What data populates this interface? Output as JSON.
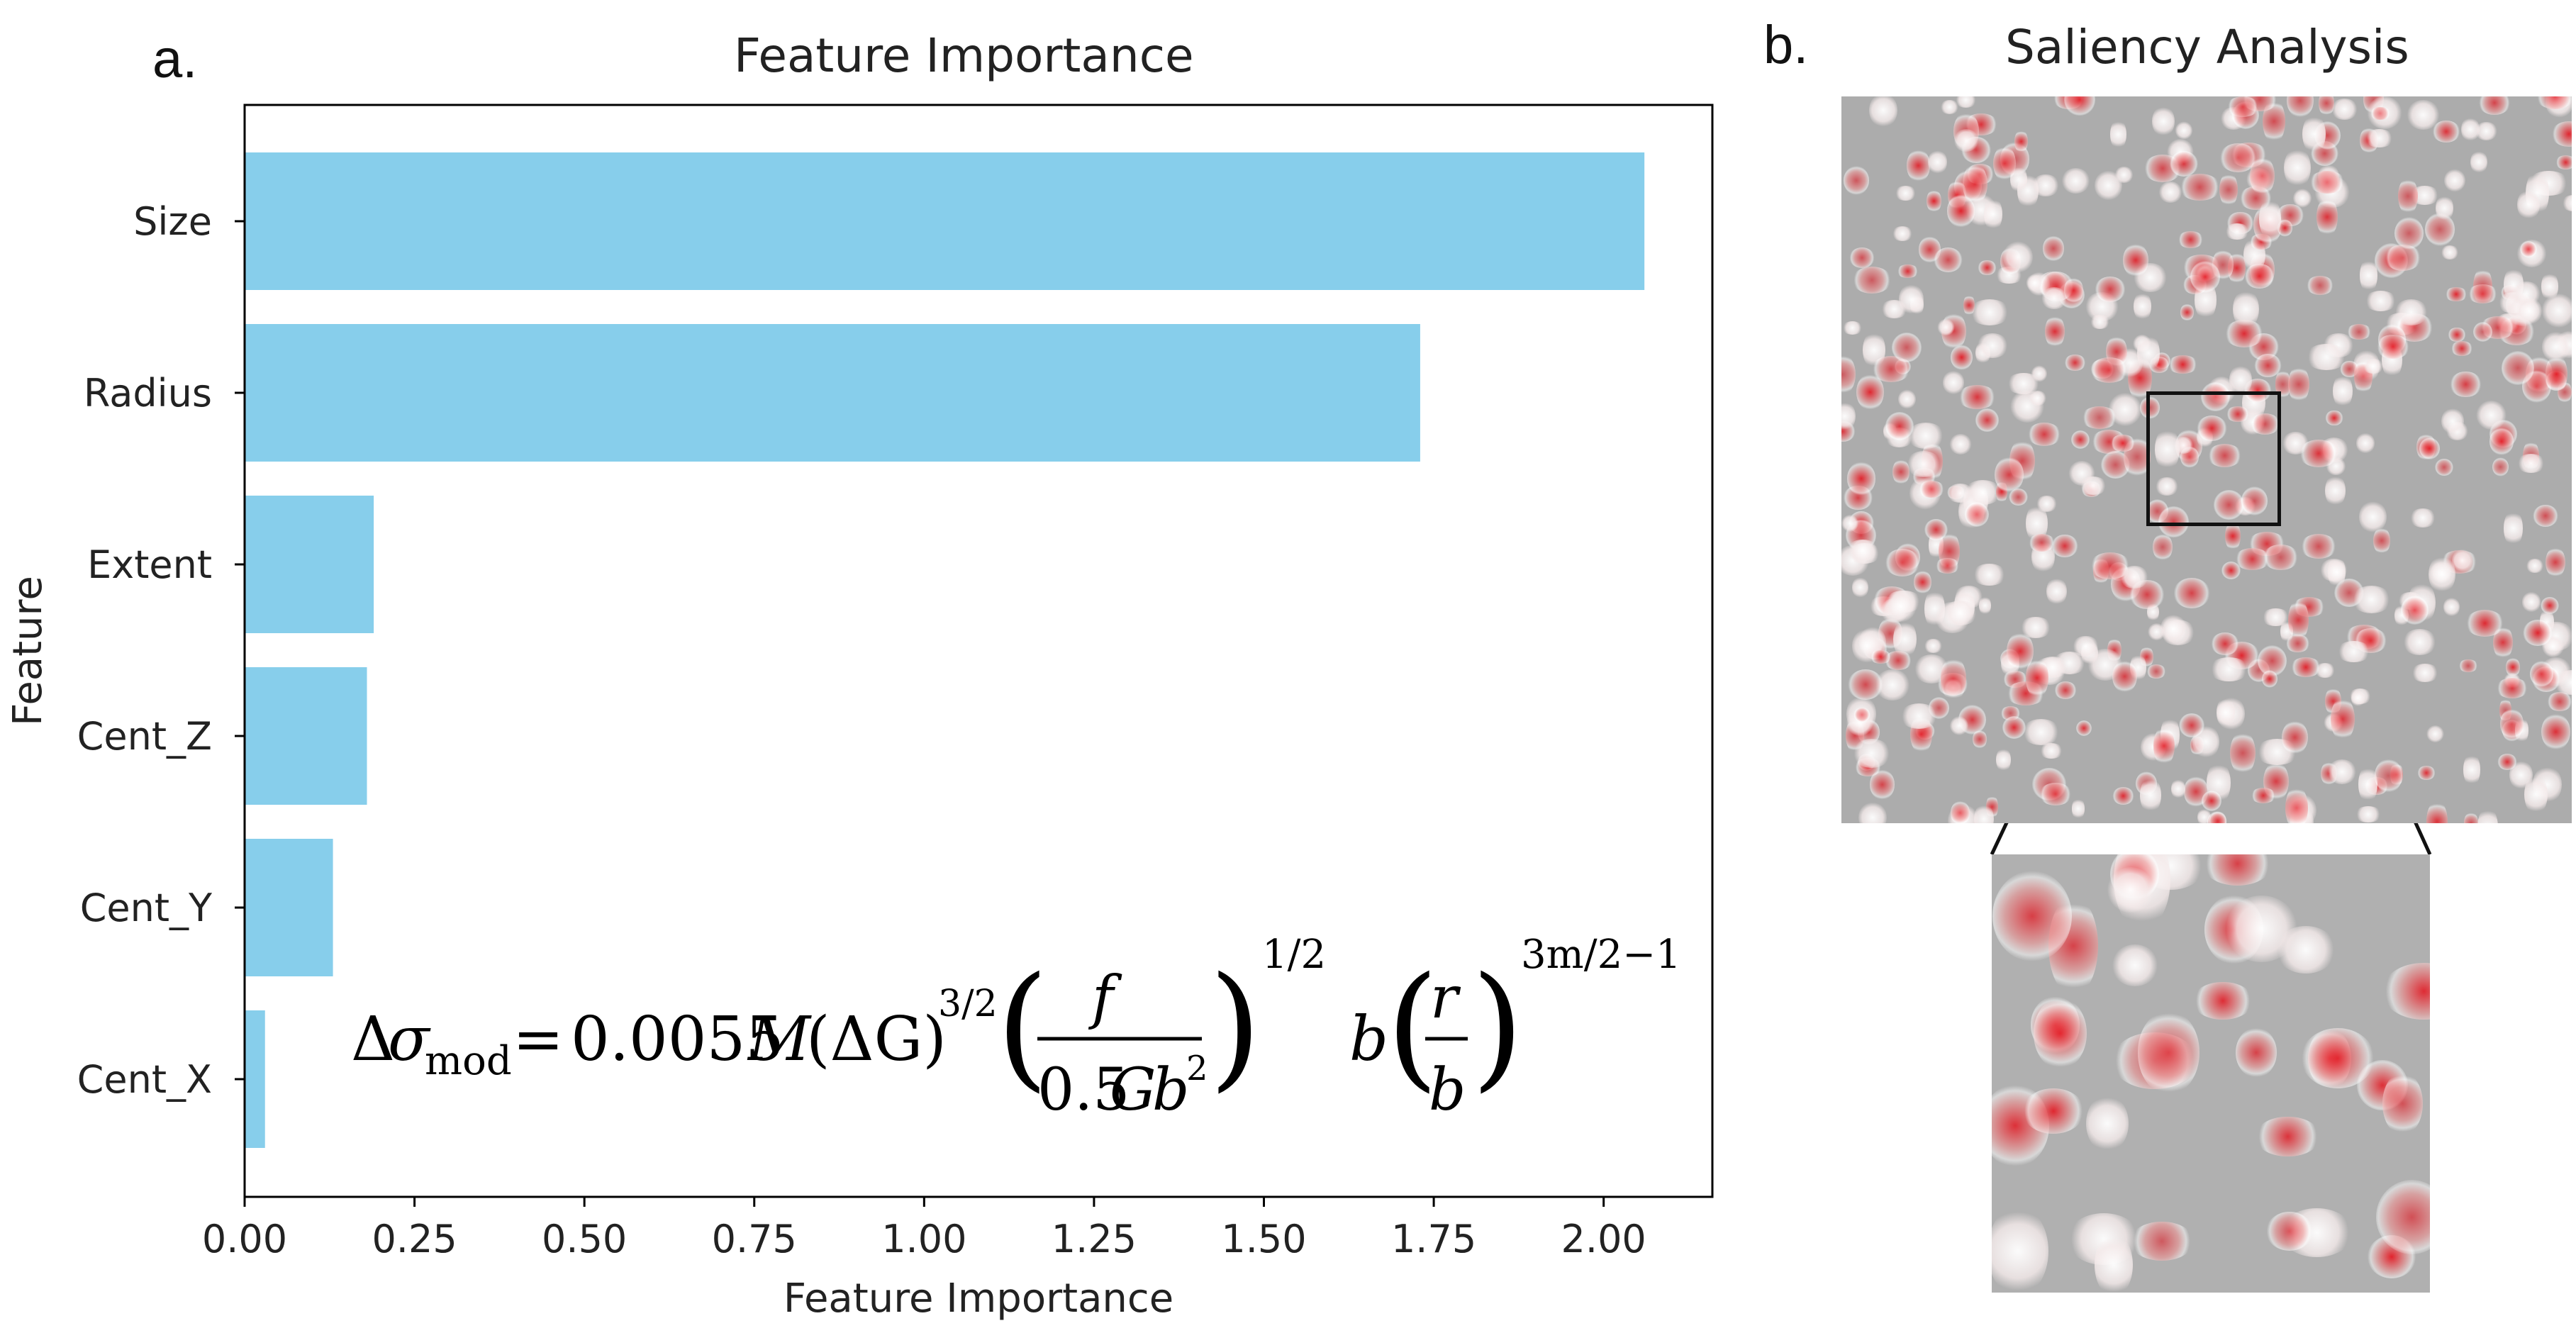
{
  "panel_a": {
    "label": "a."
  },
  "panel_b": {
    "label": "b.",
    "title": "Saliency Analysis",
    "main_image_name": "saliency-map",
    "zoom_image_name": "saliency-zoom"
  },
  "chart_data": {
    "type": "bar",
    "orientation": "horizontal",
    "title": "Feature Importance",
    "xlabel": "Feature Importance",
    "ylabel": "Feature",
    "categories": [
      "Size",
      "Radius",
      "Extent",
      "Cent_Z",
      "Cent_Y",
      "Cent_X"
    ],
    "values": [
      2.06,
      1.73,
      0.19,
      0.18,
      0.13,
      0.03
    ],
    "xlim": [
      0,
      2.16
    ],
    "xticks": [
      0.0,
      0.25,
      0.5,
      0.75,
      1.0,
      1.25,
      1.5,
      1.75,
      2.0
    ],
    "xtick_labels": [
      "0.00",
      "0.25",
      "0.50",
      "0.75",
      "1.00",
      "1.25",
      "1.50",
      "1.75",
      "2.00"
    ],
    "grid": false,
    "bar_color": "#87ceeb"
  },
  "equation": {
    "lhs_delta": "Δ",
    "lhs_sigma": "σ",
    "lhs_sub": "mod",
    "equals": "=",
    "coef": "0.0055",
    "M": "M",
    "dG": "(ΔG)",
    "dG_exp": "3/2",
    "frac1_num": "f",
    "frac1_den_coef": "0.5",
    "frac1_den_G": "G",
    "frac1_den_b": "b",
    "frac1_den_exp": "2",
    "paren1_exp": "1/2",
    "b": "b",
    "frac2_num": "r",
    "frac2_den": "b",
    "paren2_exp": "3m/2−1"
  }
}
